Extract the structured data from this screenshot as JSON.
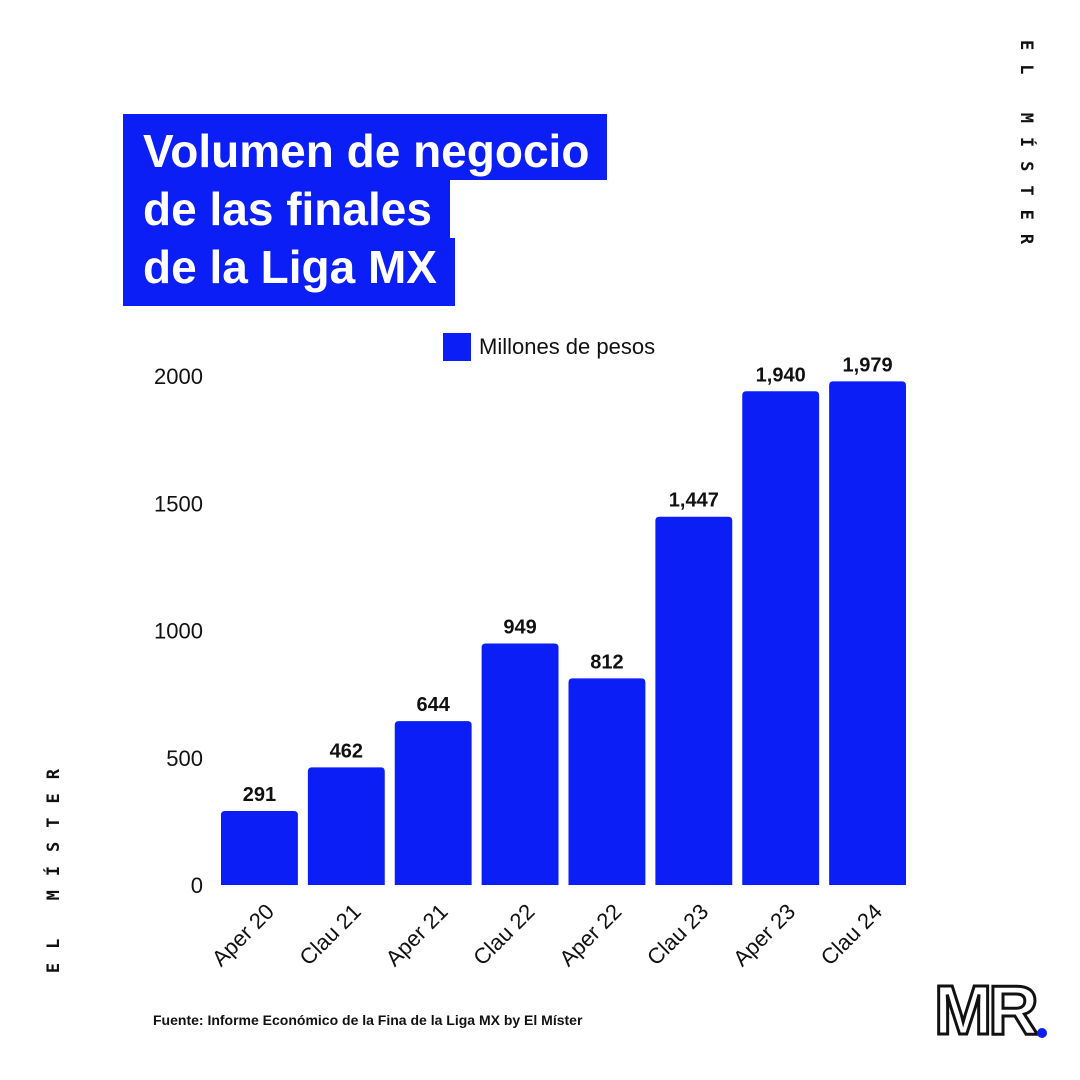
{
  "title_lines": [
    "Volumen de negocio",
    "de las finales",
    "de la Liga MX"
  ],
  "brand_vertical": "EL MÍSTER",
  "source": "Fuente: Informe Económico de la Fina de la Liga MX by El Míster",
  "logo": {
    "text": "MR",
    "dot_color": "#0a1ef5"
  },
  "colors": {
    "accent": "#0a1ef5",
    "text": "#111111",
    "background": "#ffffff"
  },
  "chart_data": {
    "type": "bar",
    "title": "Volumen de negocio de las finales de la Liga MX",
    "categories": [
      "Aper 20",
      "Clau 21",
      "Aper 21",
      "Clau 22",
      "Aper 22",
      "Clau 23",
      "Aper 23",
      "Clau 24"
    ],
    "series": [
      {
        "name": "Millones de pesos",
        "values": [
          291,
          462,
          644,
          949,
          812,
          1447,
          1940,
          1979
        ],
        "labels": [
          "291",
          "462",
          "644",
          "949",
          "812",
          "1,447",
          "1,940",
          "1,979"
        ],
        "color": "#0a1ef5"
      }
    ],
    "ylim": [
      0,
      2000
    ],
    "yticks": [
      0,
      500,
      1000,
      1500,
      2000
    ],
    "grid": false,
    "legend_position": "top-center",
    "xlabel": "",
    "ylabel": ""
  }
}
